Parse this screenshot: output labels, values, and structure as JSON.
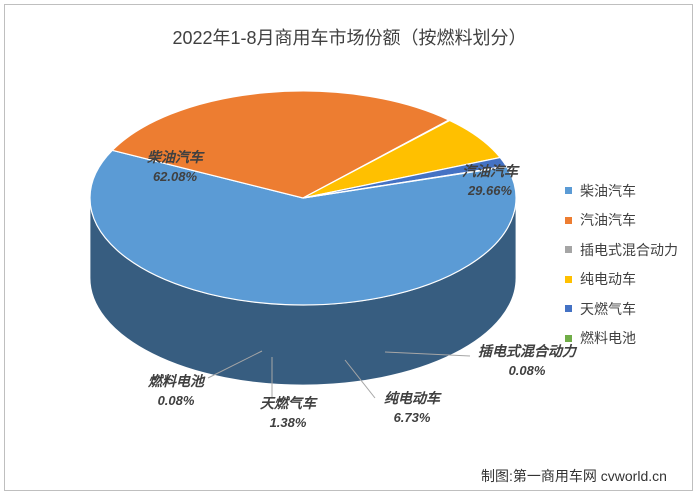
{
  "chart_data": {
    "type": "pie",
    "title": "2022年1-8月商用车市场份额（按燃料划分）",
    "slices": [
      {
        "name": "柴油汽车",
        "label": "62.08%",
        "value": 62.08,
        "color": "#5b9bd5"
      },
      {
        "name": "汽油汽车",
        "label": "29.66%",
        "value": 29.66,
        "color": "#ed7d31"
      },
      {
        "name": "插电式混合动力",
        "label": "0.08%",
        "value": 0.08,
        "color": "#a5a5a5"
      },
      {
        "name": "纯电动车",
        "label": "6.73%",
        "value": 6.73,
        "color": "#ffc000"
      },
      {
        "name": "天燃气车",
        "label": "1.38%",
        "value": 1.38,
        "color": "#4472c4"
      },
      {
        "name": "燃料电池",
        "label": "0.08%",
        "value": 0.08,
        "color": "#70ad47"
      }
    ],
    "legend_position": "right"
  },
  "credit": "制图:第一商用车网 cvworld.cn"
}
